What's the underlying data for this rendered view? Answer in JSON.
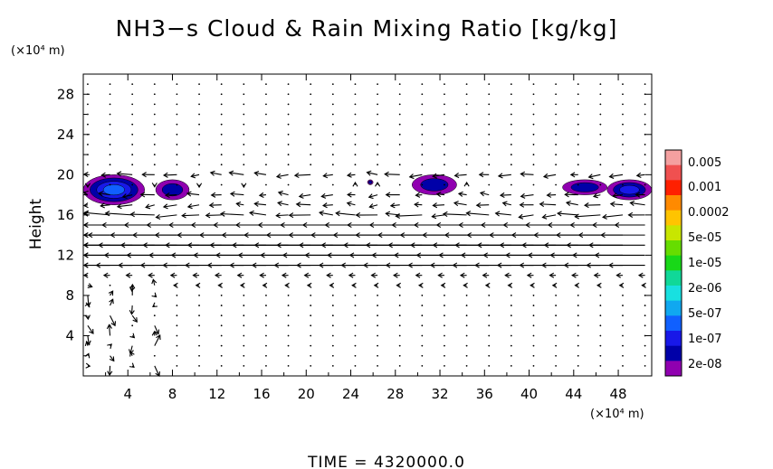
{
  "chart_data": {
    "type": "heatmap",
    "title": "NH3−s Cloud & Rain Mixing Ratio [kg/kg]",
    "ylabel": "Height",
    "y_unit": "(×10⁴ m)",
    "x_unit": "(×10⁴ m)",
    "xlim": [
      0,
      51
    ],
    "ylim": [
      0,
      30
    ],
    "x_ticks": [
      "4",
      "8",
      "12",
      "16",
      "20",
      "24",
      "28",
      "32",
      "36",
      "40",
      "44",
      "48"
    ],
    "y_ticks": [
      "4",
      "8",
      "12",
      "16",
      "20",
      "24",
      "28"
    ],
    "colorbar": {
      "labels": [
        "0.005",
        "0.001",
        "0.0002",
        "5e-05",
        "1e-05",
        "2e-06",
        "5e-07",
        "1e-07",
        "2e-08"
      ],
      "colors": [
        "#f4a0a0",
        "#f05050",
        "#ff2000",
        "#ff8a00",
        "#ffc400",
        "#c8e600",
        "#66dd00",
        "#18d818",
        "#10d898",
        "#18e0e0",
        "#10a8f0",
        "#1060ff",
        "#1818e8",
        "#0000a8",
        "#9000b0"
      ]
    },
    "wind_arrows": [
      {
        "y": 20,
        "u": -0.6
      },
      {
        "y": 18,
        "u": -0.5
      },
      {
        "y": 17,
        "u": -0.6
      },
      {
        "y": 16,
        "u": -1.0
      },
      {
        "y": 15,
        "u": -1.5
      },
      {
        "y": 14,
        "u": -2.2
      },
      {
        "y": 13,
        "u": -2.8
      },
      {
        "y": 12,
        "u": -2.5
      },
      {
        "y": 11,
        "u": -1.8
      },
      {
        "y": 10,
        "u": -0.3
      },
      {
        "y": 9,
        "u": -0.15
      }
    ],
    "clouds": [
      {
        "x": [
          0,
          5.5
        ],
        "y": [
          17,
          20
        ],
        "max": "2e-06"
      },
      {
        "x": [
          6.5,
          9.5
        ],
        "y": [
          17.5,
          19.5
        ],
        "max": "1e-07"
      },
      {
        "x": [
          25.5,
          26
        ],
        "y": [
          19,
          19.5
        ],
        "max": "1e-07"
      },
      {
        "x": [
          29.5,
          33.5
        ],
        "y": [
          18,
          20
        ],
        "max": "1e-07"
      },
      {
        "x": [
          43,
          47
        ],
        "y": [
          18,
          19.5
        ],
        "max": "1e-07"
      },
      {
        "x": [
          47,
          51
        ],
        "y": [
          17.5,
          19.5
        ],
        "max": "5e-07"
      }
    ]
  },
  "time_label": "TIME  =  4320000.0"
}
